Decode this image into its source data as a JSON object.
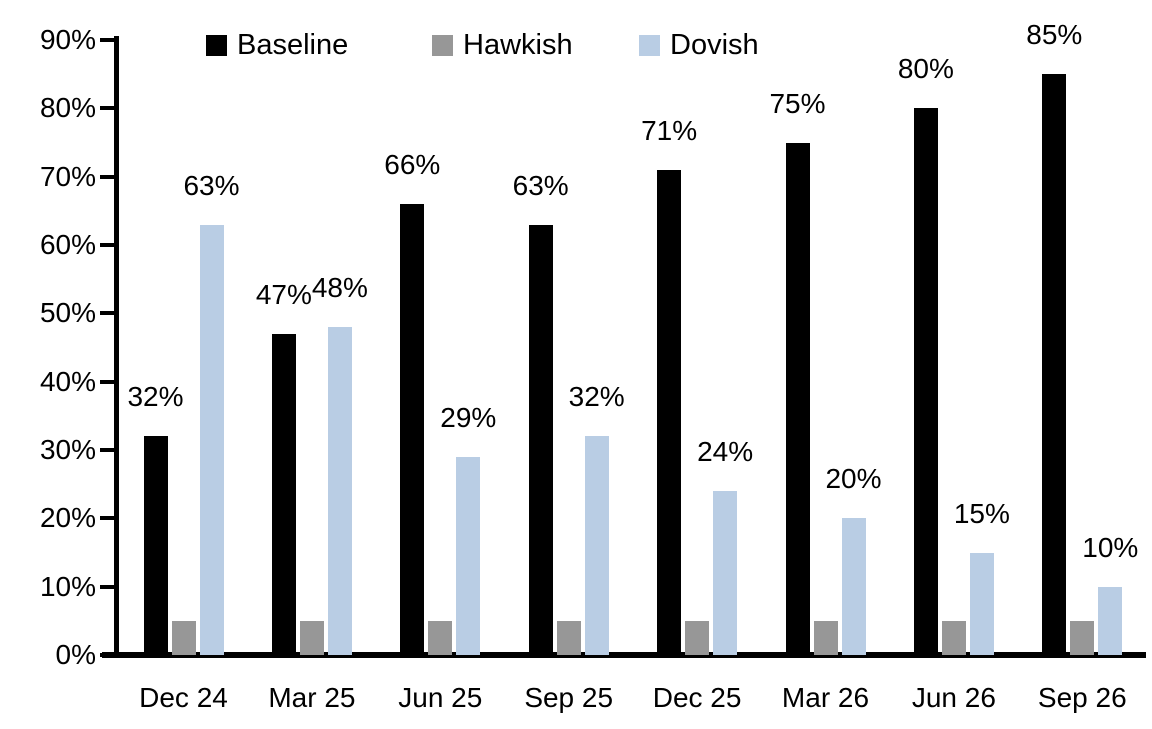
{
  "chart_data": {
    "type": "bar",
    "title": "",
    "xlabel": "",
    "ylabel": "",
    "categories": [
      "Dec 24",
      "Mar 25",
      "Jun 25",
      "Sep 25",
      "Dec 25",
      "Mar 26",
      "Jun 26",
      "Sep 26"
    ],
    "series": [
      {
        "name": "Baseline",
        "color": "#000000",
        "values": [
          32,
          47,
          66,
          63,
          71,
          75,
          80,
          85
        ],
        "labels": [
          "32%",
          "47%",
          "66%",
          "63%",
          "71%",
          "75%",
          "80%",
          "85%"
        ],
        "show_labels": true
      },
      {
        "name": "Hawkish",
        "color": "#979797",
        "values": [
          5,
          5,
          5,
          5,
          5,
          5,
          5,
          5
        ],
        "labels": [],
        "show_labels": false
      },
      {
        "name": "Dovish",
        "color": "#B9CDE4",
        "values": [
          63,
          48,
          29,
          32,
          24,
          20,
          15,
          10
        ],
        "labels": [
          "63%",
          "48%",
          "29%",
          "32%",
          "24%",
          "20%",
          "15%",
          "10%"
        ],
        "show_labels": true
      }
    ],
    "ylim": [
      0,
      90
    ],
    "yticks": [
      "0%",
      "10%",
      "20%",
      "30%",
      "40%",
      "50%",
      "60%",
      "70%",
      "80%",
      "90%"
    ],
    "grid": false,
    "legend": {
      "position": "top",
      "entries": [
        "Baseline",
        "Hawkish",
        "Dovish"
      ]
    },
    "axis_color": "#000000",
    "label_color": "#000000"
  }
}
